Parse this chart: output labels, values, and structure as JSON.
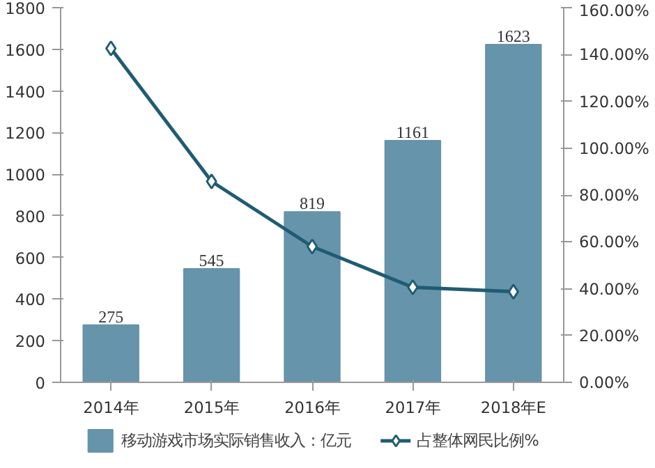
{
  "chart_data": {
    "type": "bar",
    "categories": [
      "2014年",
      "2015年",
      "2016年",
      "2017年",
      "2018年E"
    ],
    "series": [
      {
        "name": "移动游戏市场实际销售收入：亿元",
        "color": "#6594ab",
        "values": [
          275,
          545,
          819,
          1161,
          1623
        ],
        "value_labels": [
          "275",
          "545",
          "819",
          "1161",
          "1623"
        ]
      },
      {
        "name": "占整体网民比例%",
        "type": "line",
        "axis": "y2",
        "color": "#1f5c73",
        "marker": "diamond",
        "values": [
          142.6,
          85.8,
          58.0,
          40.6,
          38.7
        ]
      }
    ],
    "ylim": [
      0,
      1800
    ],
    "yticks": [
      0,
      200,
      400,
      600,
      800,
      1000,
      1200,
      1400,
      1600,
      1800
    ],
    "y2lim": [
      0,
      160
    ],
    "y2ticks": [
      {
        "value": 0,
        "label": "0.00%"
      },
      {
        "value": 20,
        "label": "20.00%"
      },
      {
        "value": 40,
        "label": "40.00%"
      },
      {
        "value": 60,
        "label": "60.00%"
      },
      {
        "value": 80,
        "label": "80.00%"
      },
      {
        "value": 100,
        "label": "100.00%"
      },
      {
        "value": 120,
        "label": "120.00%"
      },
      {
        "value": 140,
        "label": "140.00%"
      },
      {
        "value": 160,
        "label": "160.00%"
      }
    ],
    "grid": false,
    "legend": "bottom"
  }
}
